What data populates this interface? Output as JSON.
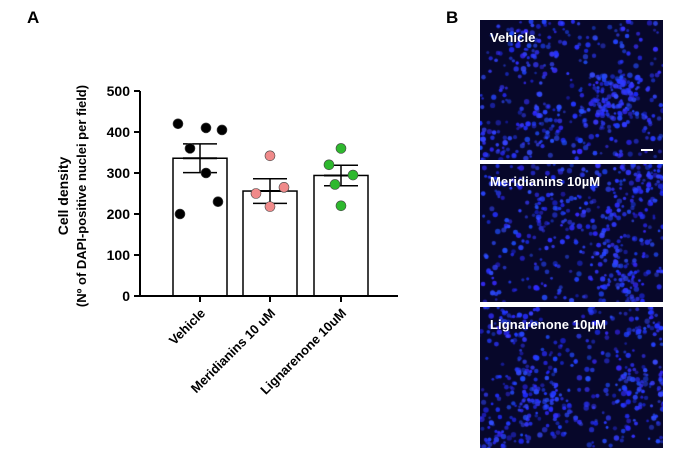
{
  "panels": {
    "a_letter": "A",
    "b_letter": "B"
  },
  "chart_data": {
    "type": "bar",
    "categories": [
      "Vehicle",
      "Meridianins 10 uM",
      "Lignarenone 10uM"
    ],
    "values": [
      336,
      256,
      294
    ],
    "sem": [
      35,
      30,
      25
    ],
    "points": [
      [
        420,
        410,
        405,
        360,
        300,
        230,
        200
      ],
      [
        342,
        265,
        250,
        218
      ],
      [
        360,
        320,
        295,
        272,
        220
      ]
    ],
    "point_colors": [
      "#000000",
      "#f08a8a",
      "#2eb82e"
    ],
    "ylabel_line1": "Cell density",
    "ylabel_line2": "(Nº of DAPI-positive nuclei per field)",
    "ylim": [
      0,
      500
    ],
    "yticks": [
      0,
      100,
      200,
      300,
      400,
      500
    ]
  },
  "micrographs": [
    {
      "label": "Vehicle",
      "scale_bar": true
    },
    {
      "label": "Meridianins 10µM",
      "scale_bar": false
    },
    {
      "label": "Lignarenone 10µM",
      "scale_bar": false
    }
  ],
  "colors": {
    "micro_bg": "#07072a",
    "nuclei": "#2a35ff"
  }
}
